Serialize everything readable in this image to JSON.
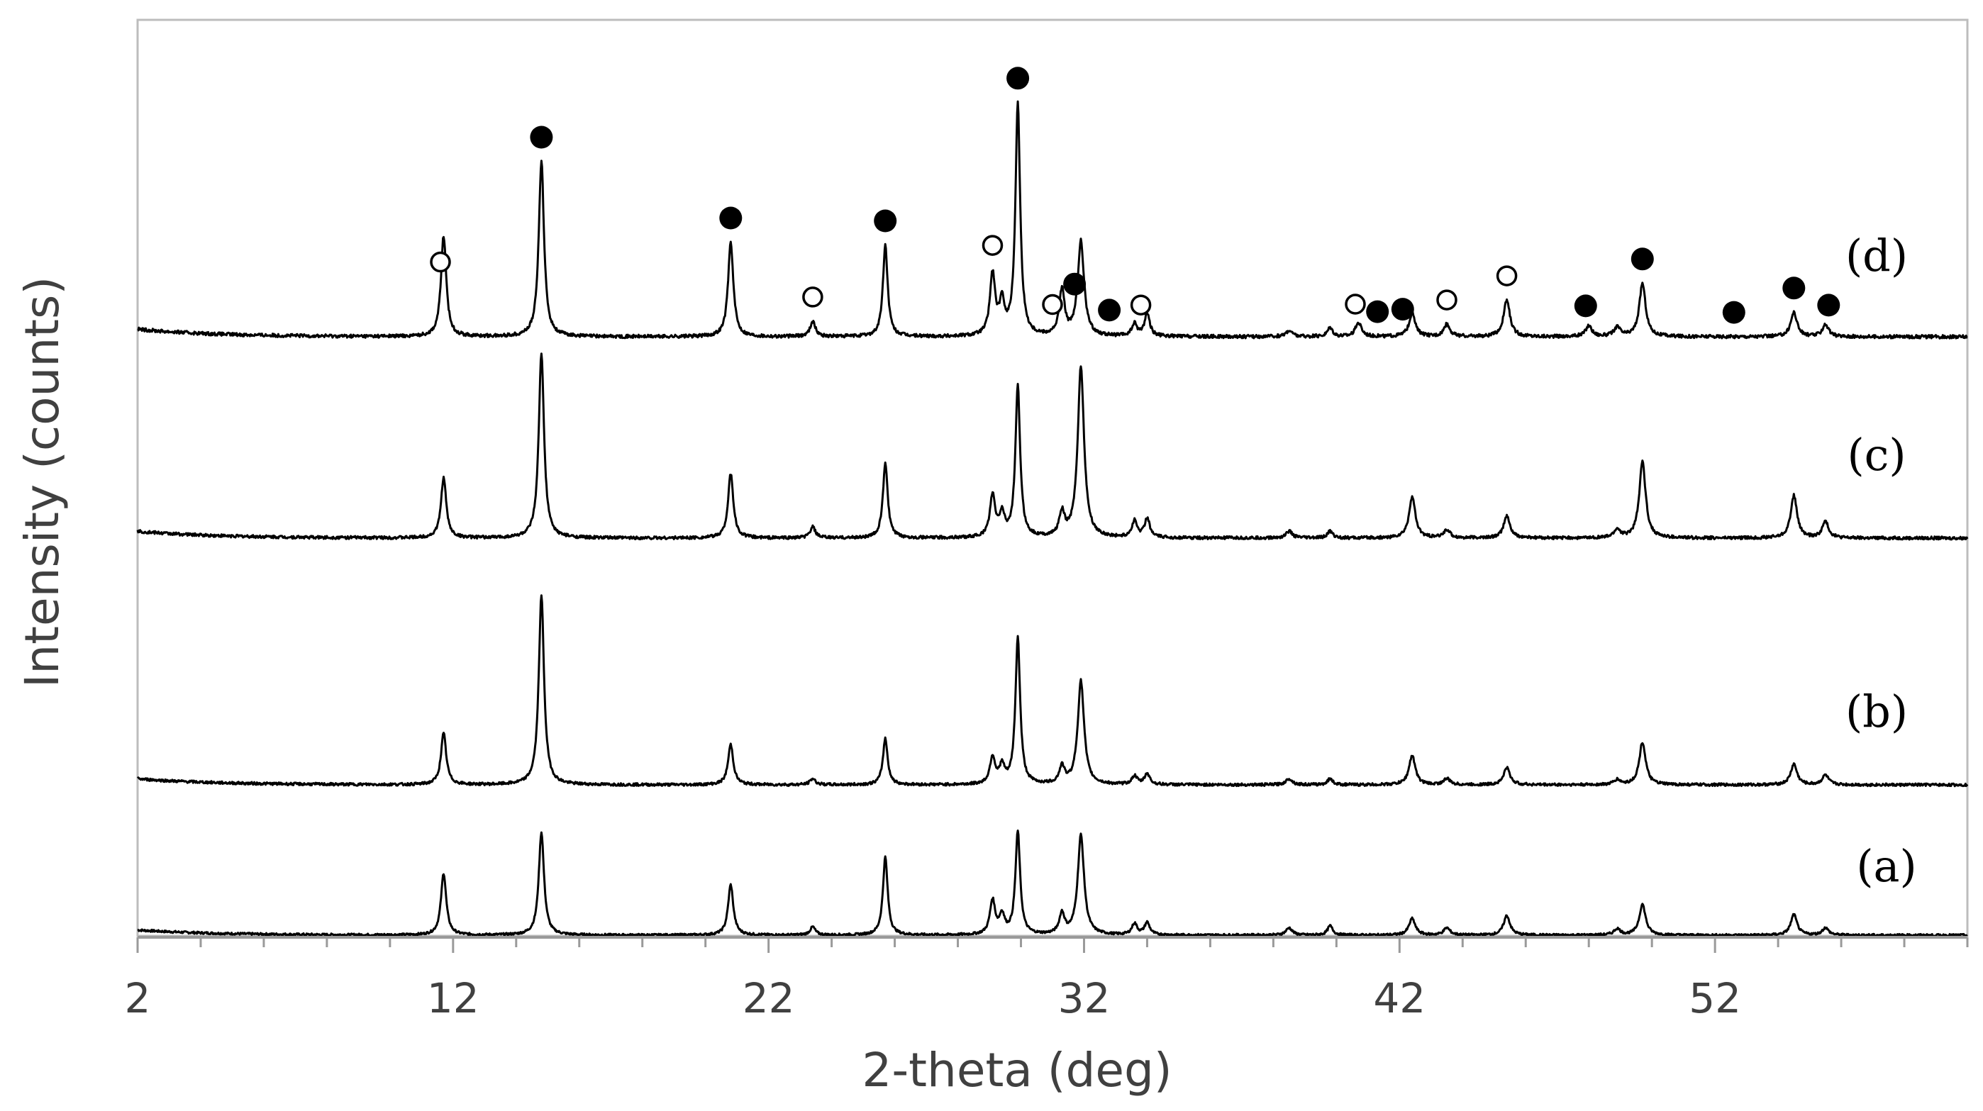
{
  "chart_data": {
    "type": "line",
    "xlabel": "2-theta (deg)",
    "ylabel": "Intensity (counts)",
    "xlim": [
      2,
      60
    ],
    "xticks": [
      2,
      12,
      22,
      32,
      42,
      52
    ],
    "grid": false,
    "legend": "none",
    "series": [
      {
        "name": "(a)",
        "baseline": 0,
        "peaks": [
          {
            "x": 11.7,
            "h": 60,
            "w": 0.1
          },
          {
            "x": 14.8,
            "h": 100,
            "w": 0.1
          },
          {
            "x": 20.8,
            "h": 49,
            "w": 0.1
          },
          {
            "x": 23.4,
            "h": 8,
            "w": 0.1
          },
          {
            "x": 25.7,
            "h": 76,
            "w": 0.09
          },
          {
            "x": 29.1,
            "h": 33,
            "w": 0.1
          },
          {
            "x": 29.4,
            "h": 18,
            "w": 0.1
          },
          {
            "x": 29.9,
            "h": 100,
            "w": 0.09
          },
          {
            "x": 31.3,
            "h": 20,
            "w": 0.1
          },
          {
            "x": 31.9,
            "h": 97,
            "w": 0.12
          },
          {
            "x": 33.6,
            "h": 11,
            "w": 0.1
          },
          {
            "x": 34.0,
            "h": 12,
            "w": 0.1
          },
          {
            "x": 38.5,
            "h": 7,
            "w": 0.12
          },
          {
            "x": 39.8,
            "h": 9,
            "w": 0.1
          },
          {
            "x": 42.4,
            "h": 16,
            "w": 0.12
          },
          {
            "x": 43.5,
            "h": 7,
            "w": 0.12
          },
          {
            "x": 45.4,
            "h": 19,
            "w": 0.12
          },
          {
            "x": 48.9,
            "h": 6,
            "w": 0.12
          },
          {
            "x": 49.7,
            "h": 30,
            "w": 0.12
          },
          {
            "x": 54.5,
            "h": 20,
            "w": 0.12
          },
          {
            "x": 55.5,
            "h": 7,
            "w": 0.12
          }
        ]
      },
      {
        "name": "(b)",
        "baseline": 0,
        "peaks": [
          {
            "x": 11.7,
            "h": 42,
            "w": 0.1
          },
          {
            "x": 14.8,
            "h": 155,
            "w": 0.1
          },
          {
            "x": 20.8,
            "h": 33,
            "w": 0.1
          },
          {
            "x": 23.4,
            "h": 5,
            "w": 0.1
          },
          {
            "x": 25.7,
            "h": 38,
            "w": 0.09
          },
          {
            "x": 29.1,
            "h": 22,
            "w": 0.1
          },
          {
            "x": 29.4,
            "h": 14,
            "w": 0.1
          },
          {
            "x": 29.9,
            "h": 120,
            "w": 0.09
          },
          {
            "x": 31.3,
            "h": 14,
            "w": 0.1
          },
          {
            "x": 31.9,
            "h": 85,
            "w": 0.12
          },
          {
            "x": 33.6,
            "h": 7,
            "w": 0.1
          },
          {
            "x": 34.0,
            "h": 9,
            "w": 0.1
          },
          {
            "x": 38.5,
            "h": 5,
            "w": 0.12
          },
          {
            "x": 39.8,
            "h": 5,
            "w": 0.1
          },
          {
            "x": 42.4,
            "h": 24,
            "w": 0.12
          },
          {
            "x": 43.5,
            "h": 5,
            "w": 0.12
          },
          {
            "x": 45.4,
            "h": 14,
            "w": 0.12
          },
          {
            "x": 48.9,
            "h": 4,
            "w": 0.12
          },
          {
            "x": 49.7,
            "h": 35,
            "w": 0.12
          },
          {
            "x": 54.5,
            "h": 17,
            "w": 0.12
          },
          {
            "x": 55.5,
            "h": 8,
            "w": 0.12
          }
        ]
      },
      {
        "name": "(c)",
        "baseline": 0,
        "peaks": [
          {
            "x": 11.7,
            "h": 44,
            "w": 0.1
          },
          {
            "x": 14.8,
            "h": 135,
            "w": 0.1
          },
          {
            "x": 20.8,
            "h": 47,
            "w": 0.1
          },
          {
            "x": 23.4,
            "h": 8,
            "w": 0.1
          },
          {
            "x": 25.7,
            "h": 55,
            "w": 0.09
          },
          {
            "x": 29.1,
            "h": 30,
            "w": 0.1
          },
          {
            "x": 29.4,
            "h": 16,
            "w": 0.1
          },
          {
            "x": 29.9,
            "h": 110,
            "w": 0.09
          },
          {
            "x": 31.3,
            "h": 17,
            "w": 0.1
          },
          {
            "x": 31.9,
            "h": 125,
            "w": 0.12
          },
          {
            "x": 33.6,
            "h": 12,
            "w": 0.1
          },
          {
            "x": 34.0,
            "h": 14,
            "w": 0.1
          },
          {
            "x": 38.5,
            "h": 5,
            "w": 0.12
          },
          {
            "x": 39.8,
            "h": 5,
            "w": 0.1
          },
          {
            "x": 42.4,
            "h": 30,
            "w": 0.12
          },
          {
            "x": 43.5,
            "h": 6,
            "w": 0.12
          },
          {
            "x": 45.4,
            "h": 16,
            "w": 0.12
          },
          {
            "x": 48.9,
            "h": 6,
            "w": 0.12
          },
          {
            "x": 49.7,
            "h": 56,
            "w": 0.12
          },
          {
            "x": 54.5,
            "h": 31,
            "w": 0.12
          },
          {
            "x": 55.5,
            "h": 12,
            "w": 0.12
          }
        ]
      },
      {
        "name": "(d)",
        "baseline": 0,
        "peaks": [
          {
            "x": 11.7,
            "h": 66,
            "w": 0.1
          },
          {
            "x": 14.8,
            "h": 115,
            "w": 0.1
          },
          {
            "x": 20.8,
            "h": 62,
            "w": 0.1
          },
          {
            "x": 23.4,
            "h": 10,
            "w": 0.1
          },
          {
            "x": 25.7,
            "h": 60,
            "w": 0.09
          },
          {
            "x": 29.1,
            "h": 40,
            "w": 0.1
          },
          {
            "x": 29.4,
            "h": 20,
            "w": 0.1
          },
          {
            "x": 29.9,
            "h": 152,
            "w": 0.09
          },
          {
            "x": 31.3,
            "h": 30,
            "w": 0.1
          },
          {
            "x": 31.9,
            "h": 62,
            "w": 0.12
          },
          {
            "x": 33.6,
            "h": 8,
            "w": 0.1
          },
          {
            "x": 34.0,
            "h": 15,
            "w": 0.1
          },
          {
            "x": 38.5,
            "h": 4,
            "w": 0.12
          },
          {
            "x": 39.8,
            "h": 6,
            "w": 0.1
          },
          {
            "x": 40.7,
            "h": 9,
            "w": 0.12
          },
          {
            "x": 42.4,
            "h": 15,
            "w": 0.12
          },
          {
            "x": 43.5,
            "h": 8,
            "w": 0.12
          },
          {
            "x": 45.4,
            "h": 24,
            "w": 0.12
          },
          {
            "x": 48.0,
            "h": 7,
            "w": 0.12
          },
          {
            "x": 48.9,
            "h": 6,
            "w": 0.12
          },
          {
            "x": 49.7,
            "h": 35,
            "w": 0.12
          },
          {
            "x": 54.5,
            "h": 16,
            "w": 0.12
          },
          {
            "x": 55.5,
            "h": 8,
            "w": 0.12
          }
        ]
      }
    ],
    "markers": [
      {
        "x": 11.6,
        "type": "open",
        "series": "(d)"
      },
      {
        "x": 14.8,
        "type": "filled",
        "series": "(d)"
      },
      {
        "x": 20.8,
        "type": "filled",
        "series": "(d)"
      },
      {
        "x": 23.4,
        "type": "open",
        "series": "(d)"
      },
      {
        "x": 25.7,
        "type": "filled",
        "series": "(d)"
      },
      {
        "x": 29.1,
        "type": "open",
        "series": "(d)"
      },
      {
        "x": 29.9,
        "type": "filled",
        "series": "(d)"
      },
      {
        "x": 31.0,
        "type": "open",
        "series": "(d)"
      },
      {
        "x": 31.7,
        "type": "filled",
        "series": "(d)"
      },
      {
        "x": 32.8,
        "type": "filled",
        "series": "(d)"
      },
      {
        "x": 33.8,
        "type": "open",
        "series": "(d)"
      },
      {
        "x": 40.6,
        "type": "open",
        "series": "(d)"
      },
      {
        "x": 41.3,
        "type": "filled",
        "series": "(d)"
      },
      {
        "x": 42.1,
        "type": "filled",
        "series": "(d)"
      },
      {
        "x": 43.5,
        "type": "open",
        "series": "(d)"
      },
      {
        "x": 45.4,
        "type": "open",
        "series": "(d)"
      },
      {
        "x": 47.9,
        "type": "filled",
        "series": "(d)"
      },
      {
        "x": 49.7,
        "type": "filled",
        "series": "(d)"
      },
      {
        "x": 52.6,
        "type": "filled",
        "series": "(d)"
      },
      {
        "x": 54.5,
        "type": "filled",
        "series": "(d)"
      },
      {
        "x": 55.6,
        "type": "filled",
        "series": "(d)"
      }
    ]
  }
}
